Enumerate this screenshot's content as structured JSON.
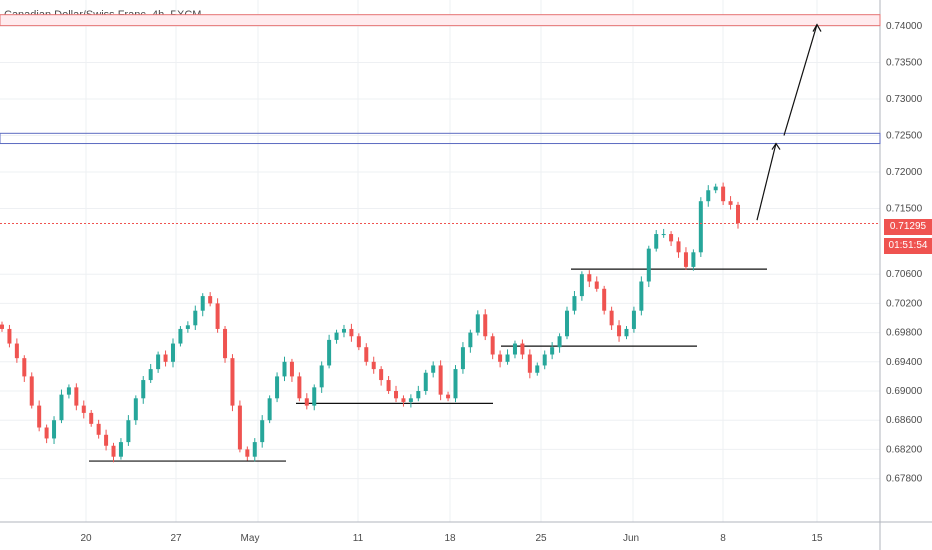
{
  "chart_data": {
    "type": "candlestick",
    "title": "Canadian Dollar/Swiss Franc, 4h, FXCM",
    "y_ticks": [
      "0.74000",
      "0.73500",
      "0.73000",
      "0.72500",
      "0.72000",
      "0.71500",
      "0.70600",
      "0.70200",
      "0.69800",
      "0.69400",
      "0.69000",
      "0.68600",
      "0.68200",
      "0.67800"
    ],
    "y_tick_values": [
      0.74,
      0.735,
      0.73,
      0.725,
      0.72,
      0.715,
      0.706,
      0.702,
      0.698,
      0.694,
      0.69,
      0.686,
      0.682,
      0.678
    ],
    "x_ticks": [
      "20",
      "27",
      "May",
      "11",
      "18",
      "25",
      "Jun",
      "8",
      "15"
    ],
    "current_price": "0.71295",
    "countdown": "01:51:54",
    "colors": {
      "up": "#26a69a",
      "down": "#ef5350",
      "line": "#111111",
      "zone_red": "#e57373",
      "zone_blue": "#5c6bc0",
      "price": "#ef5350"
    },
    "zones": [
      {
        "name": "red-resistance-zone",
        "top": 0.74155,
        "bottom": 0.74005
      },
      {
        "name": "blue-resistance-zone",
        "top": 0.7253,
        "bottom": 0.7239
      }
    ],
    "support_levels": [
      0.6804,
      0.6883,
      0.69615,
      0.7067
    ],
    "path_points": [
      [
        0.7134
      ],
      [
        0.7239
      ],
      [
        0.7402
      ]
    ],
    "series": [
      {
        "name": "price",
        "values": [
          0.6985,
          0.6965,
          0.6945,
          0.692,
          0.688,
          0.685,
          0.6835,
          0.686,
          0.6895,
          0.6905,
          0.688,
          0.687,
          0.6855,
          0.684,
          0.6825,
          0.681,
          0.683,
          0.686,
          0.689,
          0.6915,
          0.693,
          0.695,
          0.694,
          0.6965,
          0.6985,
          0.699,
          0.701,
          0.703,
          0.702,
          0.6985,
          0.6945,
          0.688,
          0.682,
          0.681,
          0.683,
          0.686,
          0.689,
          0.692,
          0.694,
          0.692,
          0.689,
          0.688,
          0.6905,
          0.6935,
          0.697,
          0.698,
          0.6985,
          0.6975,
          0.696,
          0.694,
          0.693,
          0.6915,
          0.69,
          0.689,
          0.6885,
          0.689,
          0.69,
          0.6925,
          0.6935,
          0.6895,
          0.689,
          0.693,
          0.696,
          0.698,
          0.7005,
          0.6975,
          0.695,
          0.694,
          0.695,
          0.6965,
          0.695,
          0.6925,
          0.6935,
          0.695,
          0.696,
          0.6975,
          0.701,
          0.703,
          0.706,
          0.705,
          0.704,
          0.701,
          0.699,
          0.6975,
          0.6985,
          0.701,
          0.705,
          0.7095,
          0.7115,
          0.7115,
          0.7105,
          0.709,
          0.707,
          0.709,
          0.716,
          0.7175,
          0.718,
          0.716,
          0.7155,
          0.713
        ]
      }
    ]
  }
}
